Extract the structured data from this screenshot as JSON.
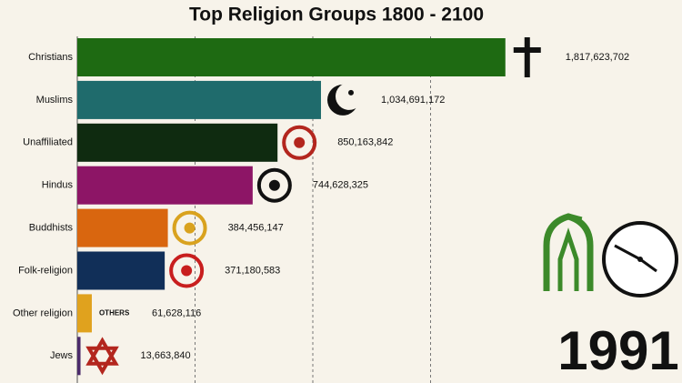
{
  "chart_data": {
    "type": "bar",
    "orientation": "horizontal",
    "title": "Top Religion Groups 1800 - 2100",
    "categories": [
      "Christians",
      "Muslims",
      "Unaffiliated",
      "Hindus",
      "Buddhists",
      "Folk-religion",
      "Other religion",
      "Jews"
    ],
    "values": [
      1817623702,
      1034691172,
      850163842,
      744628325,
      384456147,
      371180583,
      61628116,
      13663840
    ],
    "value_labels": [
      "1,817,623,702",
      "1,034,691,172",
      "850,163,842",
      "744,628,325",
      "384,456,147",
      "371,180,583",
      "61,628,116",
      "13,663,840"
    ],
    "colors": [
      "#1e6a12",
      "#1f6b6c",
      "#0f2b10",
      "#8d1566",
      "#d9660f",
      "#112f58",
      "#e0a21e",
      "#4b2a6b"
    ],
    "xlim": [
      0,
      2000000000
    ],
    "xticks": [
      0,
      500000000,
      1000000000,
      1500000000
    ],
    "grid": true,
    "others_icon_label": "OTHERS",
    "year": "1991"
  }
}
